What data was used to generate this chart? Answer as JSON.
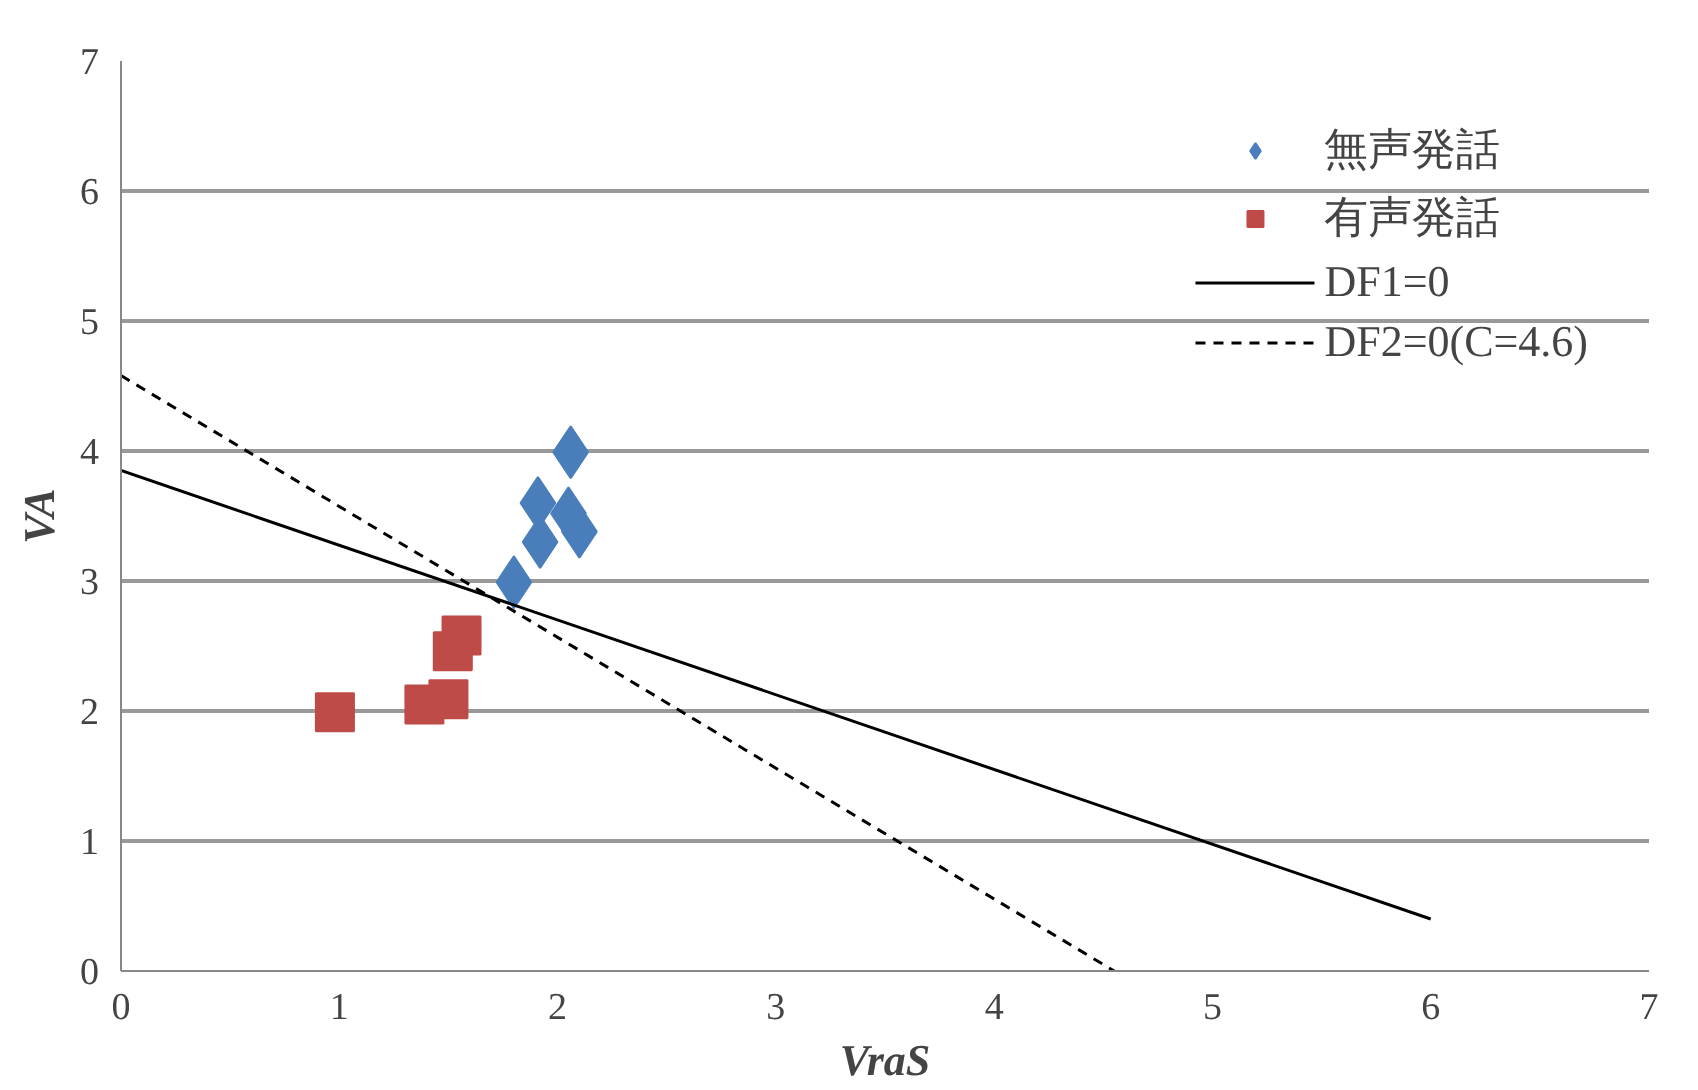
{
  "chart_data": {
    "type": "scatter",
    "xlabel": "VraS",
    "ylabel": "VA",
    "xlim": [
      0,
      7
    ],
    "ylim": [
      0,
      7
    ],
    "xticks": [
      0,
      1,
      2,
      3,
      4,
      5,
      6,
      7
    ],
    "yticks": [
      0,
      1,
      2,
      3,
      4,
      5,
      6,
      7
    ],
    "grid": "y",
    "legend": "top right",
    "series": [
      {
        "name": "無声発話",
        "color": "#4a7ebb",
        "marker": "diamond",
        "x": [
          2.06,
          1.91,
          2.05,
          2.1,
          1.92,
          1.8
        ],
        "values": [
          3.99,
          3.6,
          3.52,
          3.38,
          3.3,
          2.99
        ]
      },
      {
        "name": "有声発話",
        "color": "#be4b48",
        "marker": "square",
        "x": [
          0.98,
          1.56,
          1.52,
          1.5,
          1.39
        ],
        "values": [
          1.99,
          2.58,
          2.46,
          2.09,
          2.05
        ]
      },
      {
        "name": "DF1=0",
        "type": "line",
        "color": "#000000",
        "line_style": "solid",
        "x": [
          0,
          6
        ],
        "values": [
          3.85,
          0.4
        ]
      },
      {
        "name": "DF2=0(C=4.6)",
        "type": "line",
        "color": "#000000",
        "line_style": "dashed",
        "x": [
          0,
          4.55
        ],
        "values": [
          4.58,
          0
        ]
      }
    ]
  }
}
